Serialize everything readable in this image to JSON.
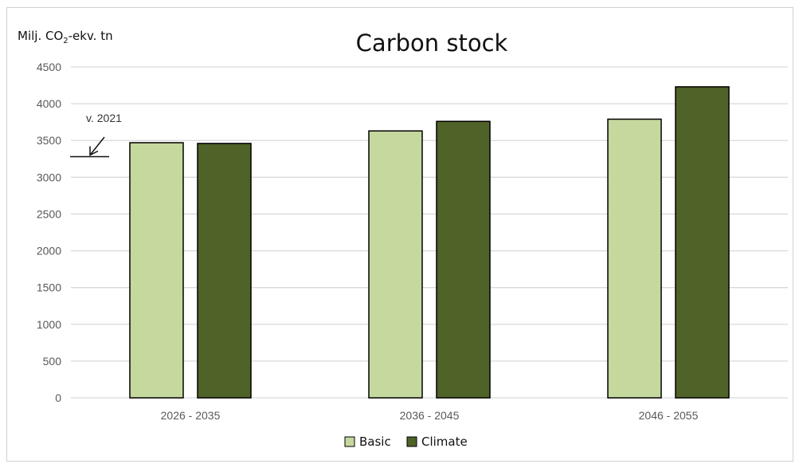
{
  "chart_data": {
    "type": "bar",
    "title": "Carbon stock",
    "ylabel_prefix": "Milj.  CO",
    "ylabel_sub": "2",
    "ylabel_suffix": "-ekv. tn",
    "categories": [
      "2026 - 2035",
      "2036 - 2045",
      "2046 - 2055"
    ],
    "series": [
      {
        "name": "Basic",
        "color": "#c5d89d",
        "values": [
          3470,
          3630,
          3790
        ]
      },
      {
        "name": "Climate",
        "color": "#4f6228",
        "values": [
          3460,
          3760,
          4230
        ]
      }
    ],
    "ylim": [
      0,
      4500
    ],
    "yticks": [
      0,
      500,
      1000,
      1500,
      2000,
      2500,
      3000,
      3500,
      4000,
      4500
    ],
    "grid": true,
    "legend": "bottom-center",
    "annotation": {
      "text": "v. 2021",
      "value": 3280
    }
  }
}
